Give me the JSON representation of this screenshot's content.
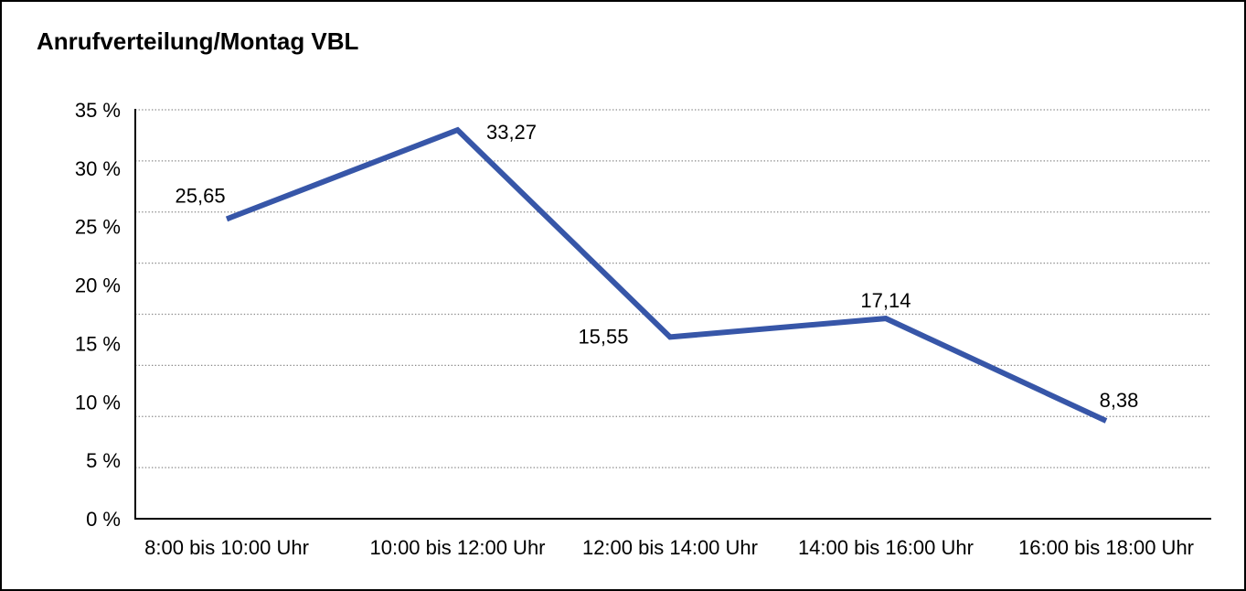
{
  "title": "Anrufverteilung/Montag VBL",
  "chart_data": {
    "type": "line",
    "title": "Anrufverteilung/Montag VBL",
    "categories": [
      "8:00 bis 10:00 Uhr",
      "10:00 bis 12:00 Uhr",
      "12:00 bis 14:00 Uhr",
      "14:00 bis 16:00 Uhr",
      "16:00 bis 18:00 Uhr"
    ],
    "values": [
      25.65,
      33.27,
      15.55,
      17.14,
      8.38
    ],
    "value_labels": [
      "25,65",
      "33,27",
      "15,55",
      "17,14",
      "8,38"
    ],
    "y_ticks": [
      "35 %",
      "30 %",
      "25 %",
      "20 %",
      "15 %",
      "10 %",
      "5 %",
      "0 %"
    ],
    "ylim": [
      0,
      35
    ],
    "xlabel": "",
    "ylabel": "",
    "grid": "horizontal-dotted",
    "legend": "none",
    "colors": {
      "line": "#3756A8",
      "axis": "#000000",
      "gridline": "#8A8A8A",
      "text": "#000000",
      "background": "#ffffff"
    }
  }
}
